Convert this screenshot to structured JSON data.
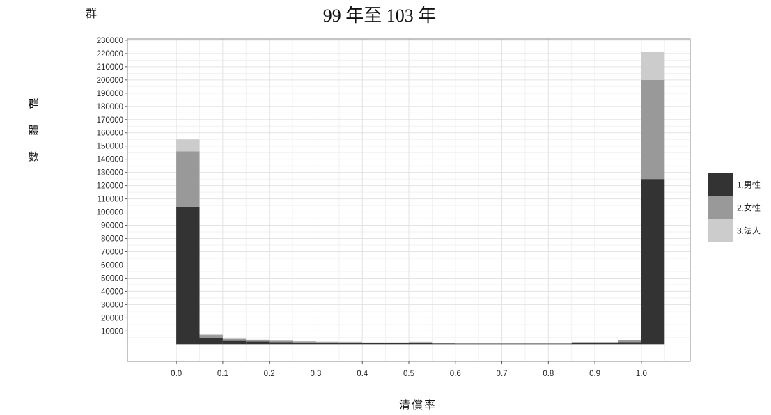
{
  "page": {
    "corner_label": "群",
    "title": "99 年至 103 年",
    "ylabel_chars": [
      "群",
      "體",
      "數"
    ],
    "xlabel": "清償率"
  },
  "chart_data": {
    "type": "bar",
    "stacked": true,
    "title": "99 年至 103 年",
    "xlabel": "清償率",
    "ylabel": "群體數",
    "x_bin_width": 0.05,
    "x_bins": [
      0.0,
      0.05,
      0.1,
      0.15,
      0.2,
      0.25,
      0.3,
      0.35,
      0.4,
      0.45,
      0.5,
      0.55,
      0.6,
      0.65,
      0.7,
      0.75,
      0.8,
      0.85,
      0.9,
      0.95,
      1.0
    ],
    "series": [
      {
        "name": "1.男性",
        "color": "#333333",
        "values": [
          104000,
          4500,
          2500,
          2000,
          1500,
          1200,
          1000,
          1000,
          800,
          800,
          800,
          500,
          400,
          400,
          400,
          400,
          400,
          1000,
          1000,
          1500,
          125000
        ]
      },
      {
        "name": "2.女性",
        "color": "#999999",
        "values": [
          42000,
          2500,
          1500,
          1000,
          1000,
          800,
          700,
          600,
          500,
          500,
          800,
          300,
          200,
          200,
          200,
          200,
          200,
          500,
          500,
          1500,
          75000
        ]
      },
      {
        "name": "3.法人",
        "color": "#cccccc",
        "values": [
          9000,
          500,
          500,
          500,
          300,
          300,
          300,
          300,
          200,
          200,
          300,
          100,
          100,
          100,
          100,
          100,
          100,
          200,
          200,
          300,
          21000
        ]
      }
    ],
    "ylim": [
      -13000,
      231000
    ],
    "y_ticks": [
      10000,
      20000,
      30000,
      40000,
      50000,
      60000,
      70000,
      80000,
      90000,
      100000,
      110000,
      120000,
      130000,
      140000,
      150000,
      160000,
      170000,
      180000,
      190000,
      200000,
      210000,
      220000,
      230000
    ],
    "xlim": [
      -0.105,
      1.105
    ],
    "x_ticks": [
      "0.0",
      "0.1",
      "0.2",
      "0.3",
      "0.4",
      "0.5",
      "0.6",
      "0.7",
      "0.8",
      "0.9",
      "1.0"
    ],
    "grid": true,
    "legend_position": "right"
  }
}
